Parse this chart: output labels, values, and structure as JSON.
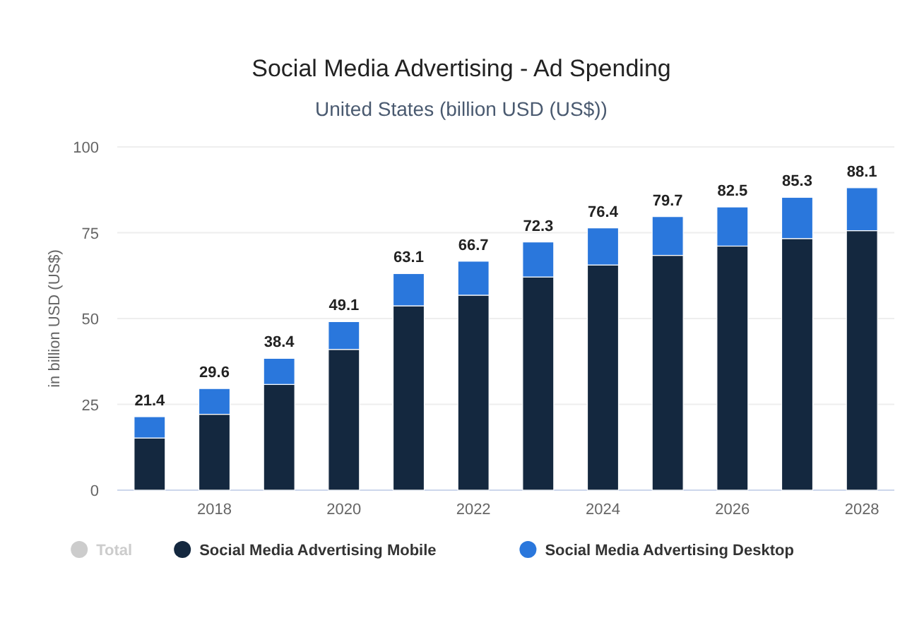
{
  "chart_data": {
    "type": "bar",
    "title": "Social Media Advertising - Ad Spending",
    "subtitle": "United States (billion USD (US$))",
    "ylabel": "in billion USD (US$)",
    "categories": [
      null,
      "2018",
      null,
      "2020",
      null,
      "2022",
      null,
      "2024",
      null,
      "2026",
      null,
      "2028"
    ],
    "stacked": true,
    "series": [
      {
        "name": "Total",
        "color": "#cccccc",
        "values": [
          null,
          null,
          null,
          null,
          null,
          null,
          null,
          null,
          null,
          null,
          null,
          null
        ]
      },
      {
        "name": "Social Media Advertising Mobile",
        "color": "#14283f",
        "values": [
          15.2,
          22.1,
          30.8,
          41.0,
          53.7,
          56.8,
          62.1,
          65.6,
          68.4,
          71.1,
          73.3,
          75.6
        ]
      },
      {
        "name": "Social Media Advertising Desktop",
        "color": "#2a77dc",
        "values": [
          6.2,
          7.5,
          7.6,
          8.1,
          9.4,
          9.9,
          10.2,
          10.8,
          11.3,
          11.4,
          12.0,
          12.5
        ]
      }
    ],
    "totals": [
      "21.4",
      "29.6",
      "38.4",
      "49.1",
      "63.1",
      "66.7",
      "72.3",
      "76.4",
      "79.7",
      "82.5",
      "85.3",
      "88.1"
    ],
    "ylim": [
      0,
      100
    ],
    "yticks": [
      0,
      25,
      50,
      75,
      100
    ],
    "grid": "y",
    "legend": "bottom"
  }
}
